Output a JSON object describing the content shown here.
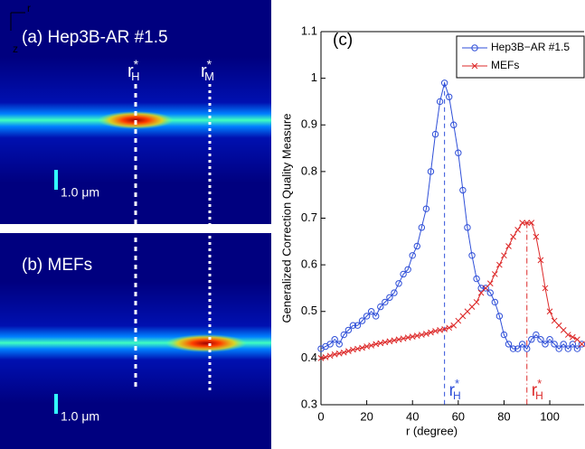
{
  "chart_data": {
    "type": "line",
    "panel_label": "(c)",
    "xlabel": "r (degree)",
    "ylabel": "Generalized Correction Quality Measure",
    "x": [
      0,
      2,
      4,
      6,
      8,
      10,
      12,
      14,
      16,
      18,
      20,
      22,
      24,
      26,
      28,
      30,
      32,
      34,
      36,
      38,
      40,
      42,
      44,
      46,
      48,
      50,
      52,
      54,
      56,
      58,
      60,
      62,
      64,
      66,
      68,
      70,
      72,
      74,
      76,
      78,
      80,
      82,
      84,
      86,
      88,
      90,
      92,
      94,
      96,
      98,
      100,
      102,
      104,
      106,
      108,
      110,
      112,
      114
    ],
    "series": [
      {
        "name": "Hep3B−AR #1.5",
        "color": "#2f4fd8",
        "marker": "circle",
        "values": [
          0.42,
          0.425,
          0.43,
          0.44,
          0.43,
          0.45,
          0.46,
          0.47,
          0.47,
          0.48,
          0.49,
          0.5,
          0.49,
          0.51,
          0.52,
          0.53,
          0.54,
          0.56,
          0.58,
          0.59,
          0.62,
          0.64,
          0.68,
          0.72,
          0.8,
          0.88,
          0.95,
          0.99,
          0.96,
          0.9,
          0.84,
          0.76,
          0.68,
          0.62,
          0.57,
          0.55,
          0.55,
          0.54,
          0.52,
          0.49,
          0.45,
          0.43,
          0.42,
          0.42,
          0.43,
          0.42,
          0.44,
          0.45,
          0.44,
          0.43,
          0.44,
          0.43,
          0.42,
          0.43,
          0.42,
          0.43,
          0.42,
          0.43
        ]
      },
      {
        "name": "MEFs",
        "color": "#dd2a2a",
        "marker": "x",
        "values": [
          0.4,
          0.402,
          0.405,
          0.408,
          0.41,
          0.412,
          0.415,
          0.418,
          0.42,
          0.422,
          0.425,
          0.427,
          0.43,
          0.432,
          0.434,
          0.436,
          0.438,
          0.44,
          0.442,
          0.444,
          0.446,
          0.448,
          0.45,
          0.452,
          0.455,
          0.458,
          0.46,
          0.462,
          0.465,
          0.47,
          0.48,
          0.49,
          0.5,
          0.51,
          0.52,
          0.54,
          0.55,
          0.56,
          0.58,
          0.6,
          0.62,
          0.64,
          0.66,
          0.675,
          0.69,
          0.69,
          0.69,
          0.66,
          0.61,
          0.55,
          0.5,
          0.48,
          0.47,
          0.46,
          0.45,
          0.445,
          0.44,
          0.43
        ]
      }
    ],
    "xlim": [
      0,
      115
    ],
    "xticks": [
      0,
      20,
      40,
      60,
      80,
      100
    ],
    "ylim": [
      0.3,
      1.1
    ],
    "yticks": [
      0.3,
      0.4,
      0.5,
      0.6,
      0.7,
      0.8,
      0.9,
      1,
      1.1
    ],
    "legend": "upper right",
    "markers": [
      {
        "x": 54,
        "label": "r",
        "superscript": "*",
        "subscript": "H",
        "color": "#2f4fd8",
        "style": "dashed"
      },
      {
        "x": 90,
        "label": "r",
        "superscript": "*",
        "subscript": "H",
        "color": "#dd2a2a",
        "style": "dashdot"
      }
    ]
  },
  "image_panels": {
    "axes": {
      "horizontal": "r",
      "vertical": "z"
    },
    "panels": [
      {
        "label": "(a) Hep3B-AR #1.5",
        "scale_bar": "1.0 μm",
        "markers": [
          {
            "label": "r",
            "superscript": "*",
            "subscript": "H"
          },
          {
            "label": "r",
            "superscript": "*",
            "subscript": "M"
          }
        ]
      },
      {
        "label": "(b) MEFs",
        "scale_bar": "1.0 μm"
      }
    ]
  }
}
